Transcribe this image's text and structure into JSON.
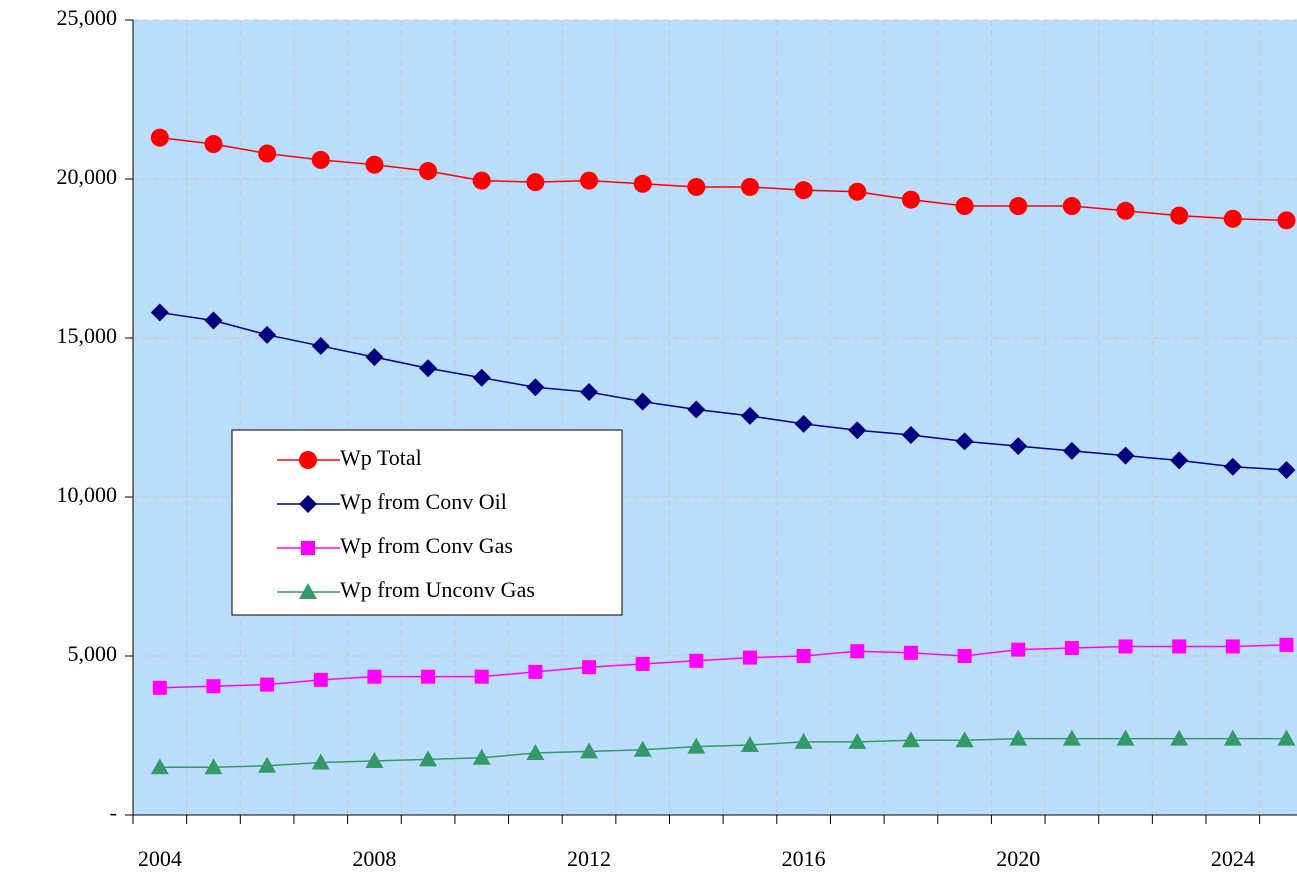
{
  "chart_data": {
    "type": "line",
    "categories": [
      "2004",
      null,
      null,
      null,
      "2008",
      null,
      null,
      null,
      "2012",
      null,
      null,
      null,
      "2016",
      null,
      null,
      null,
      "2020",
      null,
      null,
      null,
      "2024",
      null
    ],
    "series": [
      {
        "name": "Wp Total",
        "color": "#ff0000",
        "marker": "circle",
        "values": [
          21300,
          21100,
          20800,
          20600,
          20450,
          20250,
          19950,
          19900,
          19950,
          19850,
          19750,
          19750,
          19650,
          19600,
          19350,
          19150,
          19150,
          19150,
          19000,
          18850,
          18750,
          18700
        ]
      },
      {
        "name": "Wp from Conv Oil",
        "color": "#000080",
        "marker": "diamond",
        "values": [
          15800,
          15550,
          15100,
          14750,
          14400,
          14050,
          13750,
          13450,
          13300,
          13000,
          12750,
          12550,
          12300,
          12100,
          11950,
          11750,
          11600,
          11450,
          11300,
          11150,
          10950,
          10850
        ]
      },
      {
        "name": "Wp from Conv Gas",
        "color": "#ff00ff",
        "marker": "square",
        "values": [
          4000,
          4050,
          4100,
          4250,
          4350,
          4350,
          4350,
          4500,
          4650,
          4750,
          4850,
          4950,
          5000,
          5150,
          5100,
          5000,
          5200,
          5250,
          5300,
          5300,
          5300,
          5350
        ]
      },
      {
        "name": "Wp from Unconv Gas",
        "color": "#339966",
        "marker": "triangle",
        "values": [
          1500,
          1500,
          1550,
          1650,
          1700,
          1750,
          1800,
          1950,
          2000,
          2050,
          2150,
          2200,
          2300,
          2300,
          2350,
          2350,
          2400,
          2400,
          2400,
          2400,
          2400,
          2400
        ]
      }
    ],
    "ylim": [
      0,
      25000
    ],
    "yticks": [
      {
        "value": 0,
        "label": "-"
      },
      {
        "value": 5000,
        "label": "5,000"
      },
      {
        "value": 10000,
        "label": "10,000"
      },
      {
        "value": 15000,
        "label": "15,000"
      },
      {
        "value": 20000,
        "label": "20,000"
      },
      {
        "value": 25000,
        "label": "25,000"
      }
    ],
    "grid": true,
    "legend": "left",
    "background": "#bbddfc"
  }
}
